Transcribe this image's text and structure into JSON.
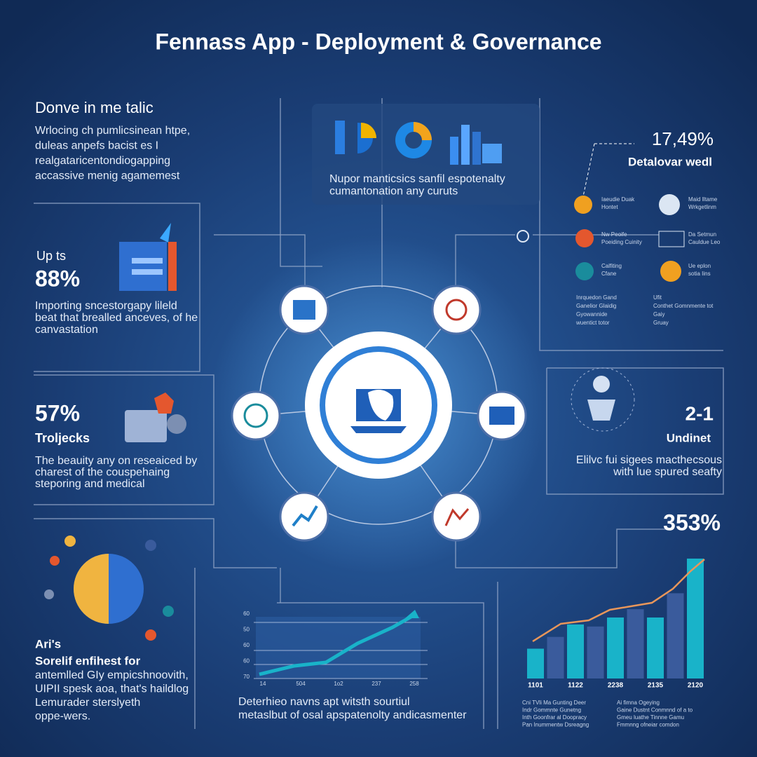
{
  "header": {
    "title": "Fennass App - Deployment & Governance"
  },
  "intro": {
    "heading": "Donve in me talic",
    "lines": [
      "Wrlocing ch pumlicsinean htpe,",
      "duleas anpefs bacist es I",
      "realgataricentondiogapping",
      "accassive menig agamemest"
    ]
  },
  "stat_one": {
    "label": "Up ts",
    "value_text": "88%",
    "lines": [
      "Importing sncestorgapy lileld",
      "beat that brealled anceves, of he",
      "canvastation"
    ]
  },
  "stat_two": {
    "value_text": "57%",
    "label": "Troljecks",
    "lines": [
      "The beauity any on reseaiced by",
      "charest of the couspehaing",
      "steporing and medical"
    ]
  },
  "arts": {
    "label": "Ari's",
    "heading": "Sorelif enfihest for",
    "lines": [
      "antemlled GIy empicshnoovith,",
      "UIPII spesk aoa, that's haildlog",
      "Lemurader sterslyeth",
      "oppe-wers."
    ]
  },
  "top_box": {
    "lines": [
      "Nupor manticsics sanfil espotenalty",
      "cumantonation any curuts"
    ]
  },
  "team": {
    "value_text": "17,49%",
    "heading": "Detalovar wedl",
    "members": [
      {
        "name": "Iaeudie Duak",
        "role": "Hontet"
      },
      {
        "name": "Maid Iltame",
        "role": "Wrkgetlinm"
      },
      {
        "name": "Nw Peoife",
        "role": "Poeiding Cuinity"
      },
      {
        "name": "Da Setmun",
        "role": "Cauldue Leo"
      },
      {
        "name": "Calfiting",
        "role": "Cfane"
      },
      {
        "name": "Ue eplon",
        "role": "sotia Iins"
      }
    ],
    "notes_left": [
      "Inrquedon Gand",
      "Ganelior Glaidig",
      "Gyowannide",
      "wuentict totor"
    ],
    "notes_right": [
      "Ufit",
      "Conthet Gomnmente tot",
      "Gaiy",
      "Gruay"
    ]
  },
  "undinet": {
    "value_text": "2-1",
    "heading": "Undinet",
    "lines": [
      "Elilvc fui sigees macthecsous",
      "with lue spured seafty"
    ]
  },
  "trend": {
    "y_labels": [
      "60",
      "50",
      "60",
      "60",
      "70"
    ],
    "x_labels": [
      "14",
      "504",
      "1o2",
      "237",
      "258"
    ],
    "caption": [
      "Deterhieo navns apt witsth sourtiul",
      "metaslbut of osal apspatenolty andicasmenter"
    ]
  },
  "growth": {
    "value_text": "353%",
    "chart_data": {
      "type": "bar",
      "categories": [
        "1101",
        null,
        "1122",
        null,
        "2238",
        null,
        "2135",
        null,
        "2120"
      ],
      "values": [
        43,
        60,
        78,
        75,
        88,
        100,
        88,
        123,
        173
      ],
      "colors": [
        "#19b3c9",
        "#3a5b9c"
      ],
      "ylim": [
        0,
        180
      ]
    },
    "legend_left": [
      "Cni TVli Ma Gunting Deer",
      "Indr Gommnte Gunetng",
      "Inth Goonfrar al Doopracy",
      "Pan Inumrnentw Dsreagng"
    ],
    "legend_right": [
      "Ai fimna Ogeying",
      "Gaine Dustnt Conmnnd of a to",
      "Gmeu luathe Tinnne Gamu",
      "Fmmnng ofneiar comdon"
    ]
  }
}
